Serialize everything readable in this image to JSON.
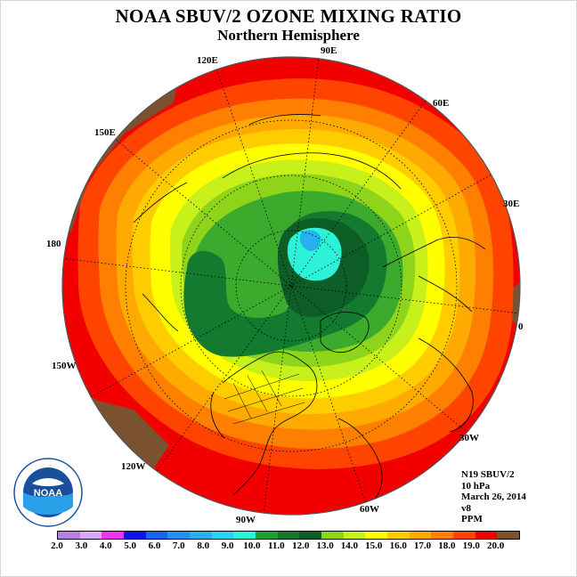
{
  "title": "NOAA SBUV/2 OZONE MIXING RATIO",
  "subtitle": "Northern Hemisphere",
  "longitude_labels": {
    "lon_120e": "120E",
    "lon_90e": "90E",
    "lon_60e": "60E",
    "lon_150e": "150E",
    "lon_30e": "30E",
    "lon_180": "180",
    "lon_0": "0",
    "lon_150w": "150W",
    "lon_30w": "30W",
    "lon_120w": "120W",
    "lon_60w": "60W",
    "lon_90w": "90W"
  },
  "info": {
    "satellite": "N19 SBUV/2",
    "level": "10 hPa",
    "date": "March 26, 2014",
    "version": "v8",
    "units": "PPM"
  },
  "logo": {
    "text": "NOAA"
  },
  "colorbar": {
    "ticks": [
      "2.0",
      "3.0",
      "4.0",
      "5.0",
      "6.0",
      "7.0",
      "8.0",
      "9.0",
      "10.0",
      "11.0",
      "12.0",
      "13.0",
      "14.0",
      "15.0",
      "16.0",
      "17.0",
      "18.0",
      "19.0",
      "20.0"
    ],
    "colors": [
      "#b77fe6",
      "#d9a8f2",
      "#ee33ee",
      "#1111ee",
      "#1a63f2",
      "#1e90f2",
      "#27b0f0",
      "#2ad0f5",
      "#2ef2d8",
      "#1b9e3a",
      "#137a30",
      "#0c5e26",
      "#8ed41a",
      "#c8f01a",
      "#ffff00",
      "#ffcc00",
      "#ffaa00",
      "#ff7f00",
      "#ff4400",
      "#f20000",
      "#7a5230"
    ]
  },
  "colors": {
    "brown": "#7a5230",
    "red": "#f20000",
    "orange_red": "#ff4400",
    "orange": "#ff7f00",
    "light_orange": "#ffaa00",
    "amber": "#ffcc00",
    "yellow": "#ffff00",
    "yellow_green": "#c8f01a",
    "light_green": "#8ed41a",
    "green": "#3caa2c",
    "dark_green": "#137a30",
    "deep_green": "#0c5e26",
    "cyan": "#2ef2d8",
    "sky": "#27b0f0"
  }
}
